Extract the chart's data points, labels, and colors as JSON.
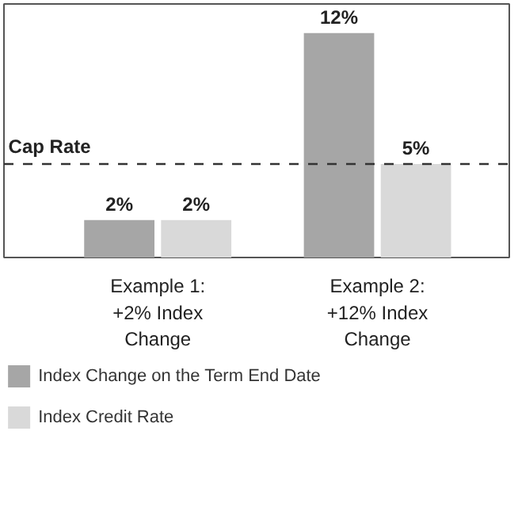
{
  "chart_data": {
    "type": "bar",
    "categories": [
      "Example 1:\n+2% Index\nChange",
      "Example 2:\n+12% Index\nChange"
    ],
    "series": [
      {
        "name": "Index Change on the Term End Date",
        "color": "#a6a6a6",
        "values": [
          2,
          12
        ],
        "value_labels": [
          "2%",
          "12%"
        ]
      },
      {
        "name": "Index Credit Rate",
        "color": "#d9d9d9",
        "values": [
          2,
          5
        ],
        "value_labels": [
          "2%",
          "5%"
        ]
      }
    ],
    "ref_lines": [
      {
        "axis": "y",
        "value": 5,
        "label": "Cap Rate",
        "color": "#333333",
        "line_style": "dashed"
      }
    ],
    "legend": "bottom"
  }
}
